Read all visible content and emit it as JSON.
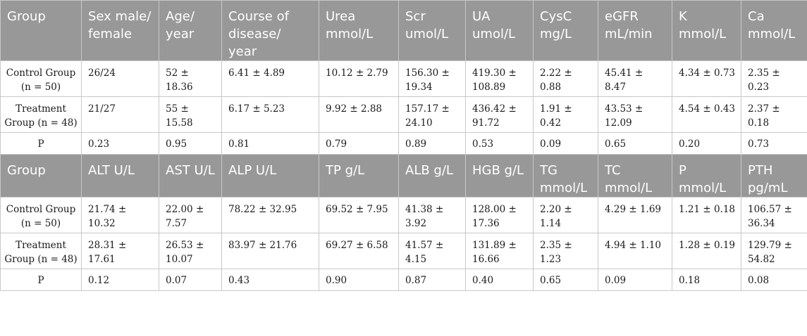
{
  "section1": {
    "headers": [
      "Group",
      "Sex male/ female",
      "Age/ year",
      "Course of disease/ year",
      "Urea mmol/L",
      "Scr umol/L",
      "UA umol/L",
      "CysC mg/L",
      "eGFR mL/min",
      "K mmol/L",
      "Ca mmol/L"
    ],
    "rows": [
      [
        "Control Group (n = 50)",
        "26/24",
        "52 ± 18.36",
        "6.41 ± 4.89",
        "10.12 ± 2.79",
        "156.30 ± 19.34",
        "419.30 ± 108.89",
        "2.22 ± 0.88",
        "45.41 ± 8.47",
        "4.34 ± 0.73",
        "2.35 ± 0.23"
      ],
      [
        "Treatment Group (n = 48)",
        "21/27",
        "55 ± 15.58",
        "6.17 ± 5.23",
        "9.92 ± 2.88",
        "157.17 ± 24.10",
        "436.42 ± 91.72",
        "1.91 ± 0.42",
        "43.53 ± 12.09",
        "4.54 ± 0.43",
        "2.37 ± 0.18"
      ],
      [
        "P",
        "0.23",
        "0.95",
        "0.81",
        "0.79",
        "0.89",
        "0.53",
        "0.09",
        "0.65",
        "0.20",
        "0.73"
      ]
    ]
  },
  "section2": {
    "headers": [
      "Group",
      "ALT U/L",
      "AST U/L",
      "ALP U/L",
      "TP g/L",
      "ALB g/L",
      "HGB g/L",
      "TG mmol/L",
      "TC mmol/L",
      "P mmol/L",
      "PTH pg/mL"
    ],
    "rows": [
      [
        "Control Group (n = 50)",
        "21.74 ± 10.32",
        "22.00 ± 7.57",
        "78.22 ± 32.95",
        "69.52 ± 7.95",
        "41.38 ± 3.92",
        "128.00 ± 17.36",
        "2.20 ± 1.14",
        "4.29 ± 1.69",
        "1.21 ± 0.18",
        "106.57 ± 36.34"
      ],
      [
        "Treatment Group (n = 48)",
        "28.31 ± 17.61",
        "26.53 ± 10.07",
        "83.97 ± 21.76",
        "69.27 ± 6.58",
        "41.57 ± 4.15",
        "131.89 ± 16.66",
        "2.35 ± 1.23",
        "4.94 ± 1.10",
        "1.28 ± 0.19",
        "129.79 ± 54.82"
      ],
      [
        "P",
        "0.12",
        "0.07",
        "0.43",
        "0.90",
        "0.87",
        "0.40",
        "0.65",
        "0.09",
        "0.18",
        "0.08"
      ]
    ]
  }
}
